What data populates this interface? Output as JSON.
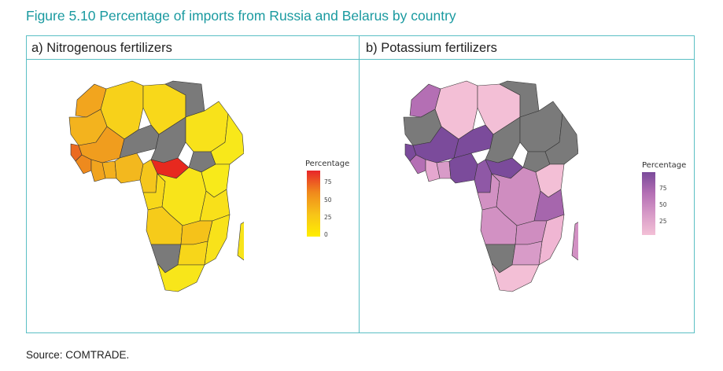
{
  "figure": {
    "title": "Figure 5.10 Percentage of imports from Russia and Belarus by country",
    "source": "Source: COMTRADE."
  },
  "chart_data": [
    {
      "type": "choropleth",
      "title": "a) Nitrogenous fertilizers",
      "legend": {
        "title": "Percentage",
        "ticks": [
          75,
          50,
          25,
          0
        ],
        "colors": [
          "#e8262a",
          "#f08a1c",
          "#f7c418",
          "#ffee00"
        ],
        "range": [
          0,
          100
        ],
        "placement": "right"
      },
      "no_data_color": "#777777",
      "regions": [
        {
          "name": "Morocco",
          "value": 40
        },
        {
          "name": "Algeria",
          "value": 20
        },
        {
          "name": "Mauritania",
          "value": 35
        },
        {
          "name": "Mali",
          "value": 38
        },
        {
          "name": "Niger",
          "value": null
        },
        {
          "name": "Chad",
          "value": null
        },
        {
          "name": "Egypt",
          "value": 5
        },
        {
          "name": "Sudan",
          "value": 8
        },
        {
          "name": "Ethiopia",
          "value": 3
        },
        {
          "name": "Senegal",
          "value": 70
        },
        {
          "name": "Guinea",
          "value": 55
        },
        {
          "name": "Cote d'Ivoire",
          "value": 45
        },
        {
          "name": "Ghana",
          "value": 40
        },
        {
          "name": "Nigeria",
          "value": 30
        },
        {
          "name": "Cameroon",
          "value": 25
        },
        {
          "name": "Central African Republic",
          "value": 85
        },
        {
          "name": "DR Congo",
          "value": 8
        },
        {
          "name": "Angola",
          "value": 15
        },
        {
          "name": "Tanzania",
          "value": 10
        },
        {
          "name": "Zambia",
          "value": 22
        },
        {
          "name": "Namibia",
          "value": null
        },
        {
          "name": "South Africa",
          "value": 5
        },
        {
          "name": "Madagascar",
          "value": 6
        }
      ]
    },
    {
      "type": "choropleth",
      "title": "b) Potassium fertilizers",
      "legend": {
        "title": "Percentage",
        "ticks": [
          75,
          50,
          25
        ],
        "colors": [
          "#7a4a9a",
          "#b46fb4",
          "#d79ac7",
          "#f3c0d6"
        ],
        "range": [
          0,
          100
        ],
        "placement": "right"
      },
      "no_data_color": "#777777",
      "regions": [
        {
          "name": "Morocco",
          "value": 60
        },
        {
          "name": "Algeria",
          "value": 15
        },
        {
          "name": "Mauritania",
          "value": null
        },
        {
          "name": "Mali",
          "value": 80
        },
        {
          "name": "Niger",
          "value": 80
        },
        {
          "name": "Chad",
          "value": null
        },
        {
          "name": "Egypt",
          "value": 10
        },
        {
          "name": "Sudan",
          "value": null
        },
        {
          "name": "Ethiopia",
          "value": null
        },
        {
          "name": "Senegal",
          "value": 75
        },
        {
          "name": "Nigeria",
          "value": 85
        },
        {
          "name": "Cameroon",
          "value": 70
        },
        {
          "name": "DR Congo",
          "value": 40
        },
        {
          "name": "Tanzania",
          "value": 35
        },
        {
          "name": "Kenya",
          "value": 15
        },
        {
          "name": "Angola",
          "value": 35
        },
        {
          "name": "Namibia",
          "value": null
        },
        {
          "name": "South Africa",
          "value": 10
        },
        {
          "name": "Madagascar",
          "value": 45
        }
      ]
    }
  ]
}
